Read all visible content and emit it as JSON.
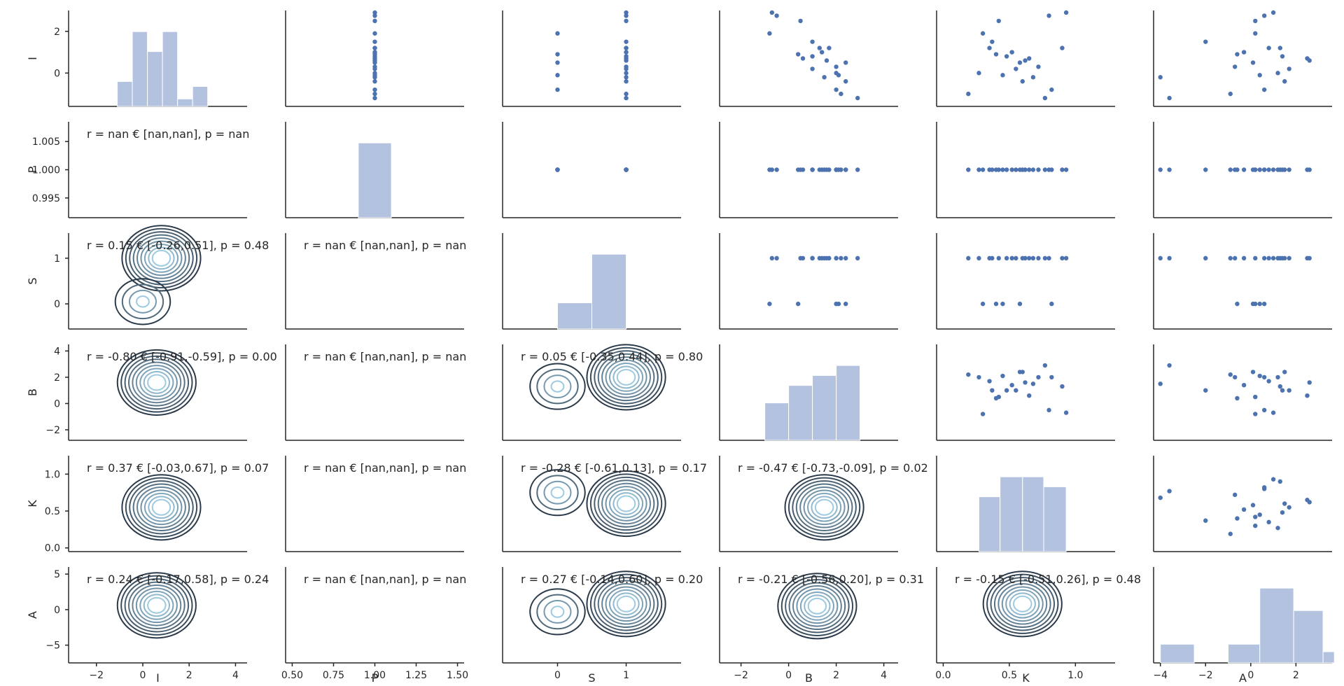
{
  "chart_data": {
    "type": "pairplot",
    "variables": [
      "I",
      "P",
      "S",
      "B",
      "K",
      "A"
    ],
    "axes": {
      "I": {
        "range": [
          -3.2,
          4.5
        ],
        "ticks": [
          -2,
          0,
          2,
          4
        ],
        "tick_labels": [
          "−2",
          "0",
          "2",
          "4"
        ],
        "y_range": [
          -1.6,
          3.0
        ],
        "y_ticks": [
          0,
          2
        ],
        "y_tick_labels": [
          "0",
          "2"
        ]
      },
      "P": {
        "range": [
          0.46,
          1.54
        ],
        "ticks": [
          0.5,
          0.75,
          1.0,
          1.25,
          1.5
        ],
        "tick_labels": [
          "0.50",
          "0.75",
          "1.00",
          "1.25",
          "1.50"
        ],
        "y_range": [
          0.9915,
          1.0085
        ],
        "y_ticks": [
          0.995,
          1.0,
          1.005
        ],
        "y_tick_labels": [
          "0.995",
          "1.000",
          "1.005"
        ]
      },
      "S": {
        "range": [
          -0.8,
          1.8
        ],
        "ticks": [
          0,
          1
        ],
        "tick_labels": [
          "0",
          "1"
        ],
        "y_range": [
          -0.55,
          1.55
        ],
        "y_ticks": [
          0,
          1
        ],
        "y_tick_labels": [
          "0",
          "1"
        ]
      },
      "B": {
        "range": [
          -2.9,
          4.6
        ],
        "ticks": [
          -2,
          0,
          2,
          4
        ],
        "tick_labels": [
          "−2",
          "0",
          "2",
          "4"
        ],
        "y_range": [
          -2.8,
          4.5
        ],
        "y_ticks": [
          -2,
          0,
          2,
          4
        ],
        "y_tick_labels": [
          "−2",
          "0",
          "2",
          "4"
        ]
      },
      "K": {
        "range": [
          -0.05,
          1.3
        ],
        "ticks": [
          0.0,
          0.5,
          1.0
        ],
        "tick_labels": [
          "0.0",
          "0.5",
          "1.0"
        ],
        "y_range": [
          -0.05,
          1.25
        ],
        "y_ticks": [
          0.0,
          0.5,
          1.0
        ],
        "y_tick_labels": [
          "0.0",
          "0.5",
          "1.0"
        ]
      },
      "A": {
        "range": [
          -4.3,
          3.6
        ],
        "ticks": [
          -4,
          -2,
          0,
          2
        ],
        "tick_labels": [
          "−4",
          "−2",
          "0",
          "2"
        ],
        "y_range": [
          -7.5,
          6.0
        ],
        "y_ticks": [
          -5,
          0,
          5
        ],
        "y_tick_labels": [
          "−5",
          "0",
          "5"
        ]
      }
    },
    "diagonal_histograms": {
      "I": {
        "edges": [
          -1.1,
          -0.45,
          0.2,
          0.85,
          1.5,
          2.15,
          2.8
        ],
        "heights": [
          1,
          3,
          2.2,
          3,
          0.3,
          0.8
        ]
      },
      "P": {
        "edges": [
          0.9,
          1.1
        ],
        "heights": [
          1
        ]
      },
      "S": {
        "edges": [
          0,
          0.5,
          1.0
        ],
        "heights": [
          7,
          20
        ]
      },
      "B": {
        "edges": [
          -1.0,
          0.0,
          1.0,
          2.0,
          3.0
        ],
        "heights": [
          1.5,
          2.2,
          2.6,
          3.0
        ]
      },
      "K": {
        "edges": [
          0.27,
          0.43,
          0.6,
          0.76,
          0.93
        ],
        "heights": [
          2.2,
          3.0,
          3.0,
          2.6
        ]
      },
      "A": {
        "edges": [
          -4.0,
          -2.5,
          -1.0,
          0.4,
          1.9,
          3.2
        ],
        "heights": [
          0.5,
          0.0,
          0.5,
          2.0,
          1.4,
          0.3
        ]
      }
    },
    "data_points": {
      "I": [
        2.9,
        2.75,
        1.9,
        0.2,
        0.9,
        0.7,
        1.2,
        1.0,
        0.5,
        0.3,
        -0.1,
        -0.4,
        -0.8,
        -1.2,
        1.5,
        2.5,
        0.6,
        -0.2,
        0.0,
        1.2,
        0.8,
        -1.0
      ],
      "P": [
        1,
        1,
        1,
        1,
        1,
        1,
        1,
        1,
        1,
        1,
        1,
        1,
        1,
        1,
        1,
        1,
        1,
        1,
        1,
        1,
        1,
        1
      ],
      "S": [
        1,
        1,
        0,
        1,
        0,
        1,
        1,
        1,
        0,
        1,
        0,
        1,
        0,
        1,
        1,
        1,
        1,
        1,
        1,
        1,
        1,
        1
      ],
      "B": [
        -0.7,
        -0.5,
        -0.8,
        1.0,
        0.4,
        0.6,
        1.3,
        1.4,
        2.4,
        2.0,
        2.1,
        2.4,
        2.0,
        2.9,
        1.0,
        0.5,
        1.6,
        1.5,
        2.0,
        1.7,
        1.0,
        2.2
      ],
      "K": [
        0.93,
        0.8,
        0.3,
        0.55,
        0.4,
        0.65,
        0.9,
        0.52,
        0.58,
        0.72,
        0.45,
        0.6,
        0.82,
        0.77,
        0.37,
        0.42,
        0.62,
        0.68,
        0.27,
        0.35,
        0.48,
        0.19
      ],
      "A": [
        1.0,
        0.6,
        0.2,
        1.7,
        -0.6,
        2.5,
        1.3,
        -0.3,
        0.1,
        -0.7,
        0.4,
        1.5,
        0.6,
        -3.6,
        -2.0,
        0.2,
        2.6,
        -4.0,
        1.2,
        0.8,
        1.4,
        -0.9
      ]
    },
    "kde_centers": {
      "I-S": [
        [
          0.8,
          1.0
        ],
        [
          0.0,
          0.05
        ]
      ],
      "I-B": [
        [
          0.6,
          1.6
        ]
      ],
      "S-B": [
        [
          1.0,
          2.0
        ],
        [
          0.0,
          1.3
        ]
      ],
      "I-K": [
        [
          0.8,
          0.55
        ]
      ],
      "S-K": [
        [
          1.0,
          0.6
        ],
        [
          0.0,
          0.75
        ]
      ],
      "B-K": [
        [
          1.5,
          0.55
        ]
      ],
      "I-A": [
        [
          0.6,
          0.6
        ]
      ],
      "S-A": [
        [
          1.0,
          0.8
        ],
        [
          0.0,
          -0.3
        ]
      ],
      "B-A": [
        [
          1.2,
          0.5
        ]
      ],
      "K-A": [
        [
          0.6,
          0.8
        ]
      ]
    },
    "correlations": [
      {
        "pair": "I-P",
        "text": "r = nan € [nan,nan], p = nan"
      },
      {
        "pair": "I-S",
        "text": "r = 0.15 € [-0.26,0.51], p = 0.48"
      },
      {
        "pair": "P-S",
        "text": "r = nan € [nan,nan], p = nan"
      },
      {
        "pair": "I-B",
        "text": "r = -0.80 € [-0.91,-0.59], p = 0.00"
      },
      {
        "pair": "P-B",
        "text": "r = nan € [nan,nan], p = nan"
      },
      {
        "pair": "S-B",
        "text": "r = 0.05 € [-0.35,0.44], p = 0.80"
      },
      {
        "pair": "I-K",
        "text": "r = 0.37 € [-0.03,0.67], p = 0.07"
      },
      {
        "pair": "P-K",
        "text": "r = nan € [nan,nan], p = nan"
      },
      {
        "pair": "S-K",
        "text": "r = -0.28 € [-0.61,0.13], p = 0.17"
      },
      {
        "pair": "B-K",
        "text": "r = -0.47 € [-0.73,-0.09], p = 0.02"
      },
      {
        "pair": "I-A",
        "text": "r = 0.24 € [-0.17,0.58], p = 0.24"
      },
      {
        "pair": "P-A",
        "text": "r = nan € [nan,nan], p = nan"
      },
      {
        "pair": "S-A",
        "text": "r = 0.27 € [-0.14,0.60], p = 0.20"
      },
      {
        "pair": "B-A",
        "text": "r = -0.21 € [-0.56,0.20], p = 0.31"
      },
      {
        "pair": "K-A",
        "text": "r = -0.15 € [-0.51,0.26], p = 0.48"
      }
    ],
    "colors": {
      "hist": "#b3c3df",
      "points": "#4c72b0",
      "kde_dark": "#2b3a4a",
      "kde_light": "#9ecae1",
      "axis": "#262626"
    },
    "grid": false
  }
}
